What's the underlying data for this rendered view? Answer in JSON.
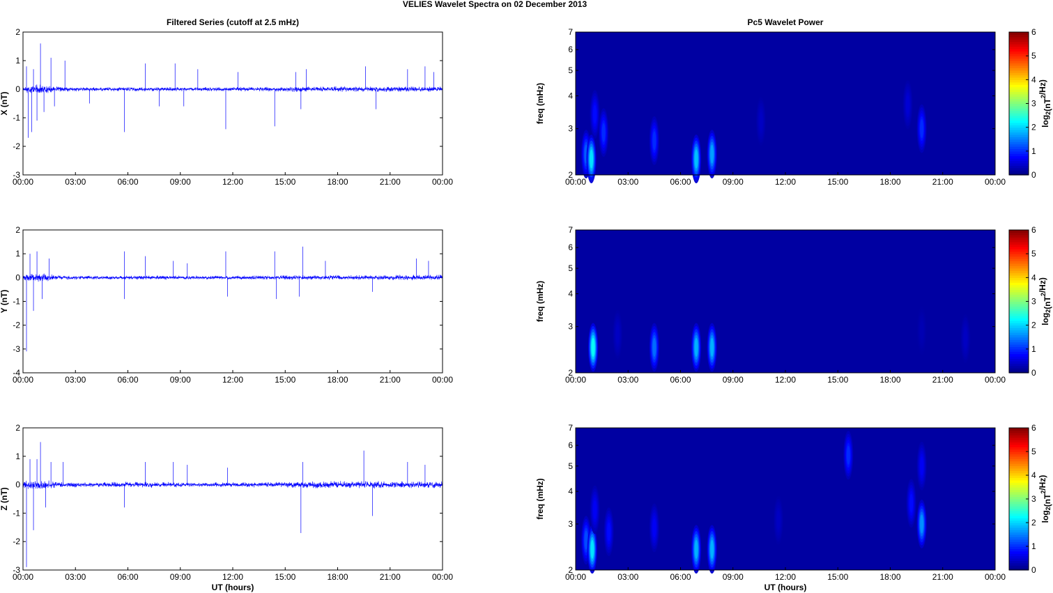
{
  "figure": {
    "title": "VELIES Wavelet Spectra on 02 December  2013",
    "left_column_title": "Filtered Series (cutoff at 2.5 mHz)",
    "right_column_title": "Pc5 Wavelet Power",
    "xlabel": "UT (hours)"
  },
  "chart_data": [
    {
      "type": "line",
      "panel": "X",
      "title": "Filtered Series (cutoff at 2.5 mHz)",
      "ylabel": "X (nT)",
      "xlabel": "",
      "x_range": [
        0,
        24
      ],
      "ylim": [
        -3,
        2
      ],
      "y_ticks": [
        "-3",
        "-2",
        "-1",
        "0",
        "1",
        "2"
      ],
      "x_ticks": [
        "00:00",
        "03:00",
        "06:00",
        "09:00",
        "12:00",
        "15:00",
        "18:00",
        "21:00",
        "00:00"
      ],
      "color": "#0000ff",
      "baseline_noise": [
        {
          "x": 0.0,
          "amp": 0.12
        },
        {
          "x": 1.0,
          "amp": 0.18
        },
        {
          "x": 2.0,
          "amp": 0.09
        },
        {
          "x": 4.0,
          "amp": 0.07
        },
        {
          "x": 7.0,
          "amp": 0.08
        },
        {
          "x": 10.0,
          "amp": 0.07
        },
        {
          "x": 14.0,
          "amp": 0.09
        },
        {
          "x": 16.0,
          "amp": 0.1
        },
        {
          "x": 19.5,
          "amp": 0.1
        },
        {
          "x": 21.0,
          "amp": 0.1
        },
        {
          "x": 24.0,
          "amp": 0.1
        }
      ],
      "spikes": [
        {
          "x": 0.2,
          "y": 0.8
        },
        {
          "x": 0.3,
          "y": -1.7
        },
        {
          "x": 0.5,
          "y": -1.5
        },
        {
          "x": 0.6,
          "y": 0.7
        },
        {
          "x": 0.8,
          "y": -1.1
        },
        {
          "x": 1.0,
          "y": 1.6
        },
        {
          "x": 1.2,
          "y": -0.8
        },
        {
          "x": 1.6,
          "y": 1.1
        },
        {
          "x": 1.8,
          "y": -0.6
        },
        {
          "x": 2.4,
          "y": 1.0
        },
        {
          "x": 3.8,
          "y": -0.5
        },
        {
          "x": 5.8,
          "y": -1.5
        },
        {
          "x": 7.0,
          "y": 0.9
        },
        {
          "x": 7.8,
          "y": -0.6
        },
        {
          "x": 8.7,
          "y": 0.9
        },
        {
          "x": 9.2,
          "y": -0.6
        },
        {
          "x": 10.0,
          "y": 0.7
        },
        {
          "x": 11.6,
          "y": -1.4
        },
        {
          "x": 12.3,
          "y": 0.6
        },
        {
          "x": 14.4,
          "y": -1.3
        },
        {
          "x": 15.6,
          "y": 0.6
        },
        {
          "x": 15.9,
          "y": -0.7
        },
        {
          "x": 16.2,
          "y": 0.7
        },
        {
          "x": 19.6,
          "y": 0.8
        },
        {
          "x": 20.2,
          "y": -0.7
        },
        {
          "x": 22.0,
          "y": 0.7
        },
        {
          "x": 23.0,
          "y": 0.8
        },
        {
          "x": 23.5,
          "y": 0.6
        }
      ]
    },
    {
      "type": "heatmap",
      "panel": "X",
      "title": "Pc5 Wavelet Power",
      "ylabel": "freq (mHz)",
      "colorbar_label": "log2(nT^2/Hz)",
      "x_range": [
        0,
        24
      ],
      "ylim": [
        2,
        7
      ],
      "y_scale": "log",
      "y_ticks": [
        "2",
        "3",
        "4",
        "5",
        "6",
        "7"
      ],
      "x_ticks": [
        "00:00",
        "03:00",
        "06:00",
        "09:00",
        "12:00",
        "15:00",
        "18:00",
        "21:00",
        "00:00"
      ],
      "clim": [
        0,
        6
      ],
      "colorbar_ticks": [
        "0",
        "1",
        "2",
        "3",
        "4",
        "5",
        "6"
      ],
      "background_value": 0.2,
      "blobs": [
        {
          "t": 0.6,
          "f": 2.4,
          "peak": 1.3
        },
        {
          "t": 0.9,
          "f": 2.3,
          "peak": 2.1
        },
        {
          "t": 1.1,
          "f": 3.4,
          "peak": 0.8
        },
        {
          "t": 1.6,
          "f": 2.9,
          "peak": 1.0
        },
        {
          "t": 4.5,
          "f": 2.7,
          "peak": 1.0
        },
        {
          "t": 6.9,
          "f": 2.3,
          "peak": 1.9
        },
        {
          "t": 7.8,
          "f": 2.4,
          "peak": 1.7
        },
        {
          "t": 10.6,
          "f": 3.2,
          "peak": 0.4
        },
        {
          "t": 19.0,
          "f": 3.7,
          "peak": 0.5
        },
        {
          "t": 19.8,
          "f": 3.0,
          "peak": 1.0
        }
      ]
    },
    {
      "type": "line",
      "panel": "Y",
      "title": "",
      "ylabel": "Y (nT)",
      "xlabel": "",
      "x_range": [
        0,
        24
      ],
      "ylim": [
        -4,
        2
      ],
      "y_ticks": [
        "-4",
        "-3",
        "-2",
        "-1",
        "0",
        "1",
        "2"
      ],
      "x_ticks": [
        "00:00",
        "03:00",
        "06:00",
        "09:00",
        "12:00",
        "15:00",
        "18:00",
        "21:00",
        "00:00"
      ],
      "color": "#0000ff",
      "baseline_noise": [
        {
          "x": 0.0,
          "amp": 0.15
        },
        {
          "x": 1.0,
          "amp": 0.2
        },
        {
          "x": 2.0,
          "amp": 0.1
        },
        {
          "x": 4.0,
          "amp": 0.08
        },
        {
          "x": 7.0,
          "amp": 0.09
        },
        {
          "x": 10.0,
          "amp": 0.08
        },
        {
          "x": 14.0,
          "amp": 0.09
        },
        {
          "x": 16.0,
          "amp": 0.1
        },
        {
          "x": 19.5,
          "amp": 0.1
        },
        {
          "x": 21.0,
          "amp": 0.12
        },
        {
          "x": 24.0,
          "amp": 0.12
        }
      ],
      "spikes": [
        {
          "x": 0.2,
          "y": -3.1
        },
        {
          "x": 0.4,
          "y": 1.0
        },
        {
          "x": 0.6,
          "y": -1.4
        },
        {
          "x": 0.8,
          "y": 1.1
        },
        {
          "x": 1.1,
          "y": -0.9
        },
        {
          "x": 1.5,
          "y": 0.8
        },
        {
          "x": 5.8,
          "y": 1.1
        },
        {
          "x": 5.8,
          "y": -0.9
        },
        {
          "x": 7.0,
          "y": 0.9
        },
        {
          "x": 8.6,
          "y": 0.7
        },
        {
          "x": 9.4,
          "y": 0.6
        },
        {
          "x": 11.6,
          "y": 1.1
        },
        {
          "x": 11.7,
          "y": -0.8
        },
        {
          "x": 14.4,
          "y": 1.1
        },
        {
          "x": 14.5,
          "y": -0.9
        },
        {
          "x": 16.0,
          "y": 1.3
        },
        {
          "x": 15.8,
          "y": -0.8
        },
        {
          "x": 17.3,
          "y": 0.7
        },
        {
          "x": 20.0,
          "y": -0.6
        },
        {
          "x": 22.5,
          "y": 0.8
        },
        {
          "x": 23.2,
          "y": 0.7
        }
      ]
    },
    {
      "type": "heatmap",
      "panel": "Y",
      "title": "",
      "ylabel": "freq (mHz)",
      "colorbar_label": "log2(nT^2/Hz)",
      "x_range": [
        0,
        24
      ],
      "ylim": [
        2,
        7
      ],
      "y_scale": "log",
      "y_ticks": [
        "2",
        "3",
        "4",
        "5",
        "6",
        "7"
      ],
      "x_ticks": [
        "00:00",
        "03:00",
        "06:00",
        "09:00",
        "12:00",
        "15:00",
        "18:00",
        "21:00",
        "00:00"
      ],
      "clim": [
        0,
        6
      ],
      "colorbar_ticks": [
        "0",
        "1",
        "2",
        "3",
        "4",
        "5",
        "6"
      ],
      "background_value": 0.2,
      "blobs": [
        {
          "t": 1.0,
          "f": 2.5,
          "peak": 2.3
        },
        {
          "t": 2.4,
          "f": 2.8,
          "peak": 0.4
        },
        {
          "t": 4.5,
          "f": 2.5,
          "peak": 1.4
        },
        {
          "t": 6.9,
          "f": 2.5,
          "peak": 1.8
        },
        {
          "t": 7.8,
          "f": 2.5,
          "peak": 1.8
        },
        {
          "t": 19.8,
          "f": 2.9,
          "peak": 0.3
        },
        {
          "t": 22.3,
          "f": 2.7,
          "peak": 0.4
        }
      ]
    },
    {
      "type": "line",
      "panel": "Z",
      "title": "",
      "ylabel": "Z (nT)",
      "xlabel": "UT (hours)",
      "x_range": [
        0,
        24
      ],
      "ylim": [
        -3,
        2
      ],
      "y_ticks": [
        "-3",
        "-2",
        "-1",
        "0",
        "1",
        "2"
      ],
      "x_ticks": [
        "00:00",
        "03:00",
        "06:00",
        "09:00",
        "12:00",
        "15:00",
        "18:00",
        "21:00",
        "00:00"
      ],
      "color": "#0000ff",
      "baseline_noise": [
        {
          "x": 0.0,
          "amp": 0.15
        },
        {
          "x": 1.0,
          "amp": 0.2
        },
        {
          "x": 2.0,
          "amp": 0.1
        },
        {
          "x": 4.0,
          "amp": 0.08
        },
        {
          "x": 7.0,
          "amp": 0.12
        },
        {
          "x": 10.0,
          "amp": 0.08
        },
        {
          "x": 14.0,
          "amp": 0.1
        },
        {
          "x": 16.0,
          "amp": 0.12
        },
        {
          "x": 19.5,
          "amp": 0.15
        },
        {
          "x": 21.0,
          "amp": 0.12
        },
        {
          "x": 24.0,
          "amp": 0.12
        }
      ],
      "spikes": [
        {
          "x": 0.2,
          "y": -2.9
        },
        {
          "x": 0.4,
          "y": 0.9
        },
        {
          "x": 0.6,
          "y": -1.6
        },
        {
          "x": 0.8,
          "y": 0.9
        },
        {
          "x": 1.0,
          "y": 1.5
        },
        {
          "x": 1.3,
          "y": -0.8
        },
        {
          "x": 1.6,
          "y": 0.8
        },
        {
          "x": 2.3,
          "y": 0.8
        },
        {
          "x": 5.8,
          "y": -0.8
        },
        {
          "x": 7.0,
          "y": 0.8
        },
        {
          "x": 8.6,
          "y": 0.8
        },
        {
          "x": 9.4,
          "y": 0.7
        },
        {
          "x": 11.7,
          "y": 0.6
        },
        {
          "x": 15.9,
          "y": -1.7
        },
        {
          "x": 16.0,
          "y": 0.8
        },
        {
          "x": 19.5,
          "y": 1.2
        },
        {
          "x": 20.0,
          "y": -1.1
        },
        {
          "x": 22.0,
          "y": 0.8
        },
        {
          "x": 23.0,
          "y": 0.7
        }
      ]
    },
    {
      "type": "heatmap",
      "panel": "Z",
      "title": "",
      "ylabel": "freq (mHz)",
      "xlabel": "UT (hours)",
      "colorbar_label": "log2(nT^2/Hz)",
      "x_range": [
        0,
        24
      ],
      "ylim": [
        2,
        7
      ],
      "y_scale": "log",
      "y_ticks": [
        "2",
        "3",
        "4",
        "5",
        "6",
        "7"
      ],
      "x_ticks": [
        "00:00",
        "03:00",
        "06:00",
        "09:00",
        "12:00",
        "15:00",
        "18:00",
        "21:00",
        "00:00"
      ],
      "clim": [
        0,
        6
      ],
      "colorbar_ticks": [
        "0",
        "1",
        "2",
        "3",
        "4",
        "5",
        "6"
      ],
      "background_value": 0.2,
      "blobs": [
        {
          "t": 0.6,
          "f": 2.6,
          "peak": 1.2
        },
        {
          "t": 0.95,
          "f": 2.4,
          "peak": 2.1
        },
        {
          "t": 1.1,
          "f": 3.4,
          "peak": 0.7
        },
        {
          "t": 1.9,
          "f": 2.8,
          "peak": 0.8
        },
        {
          "t": 4.5,
          "f": 2.9,
          "peak": 0.7
        },
        {
          "t": 6.9,
          "f": 2.4,
          "peak": 1.8
        },
        {
          "t": 7.8,
          "f": 2.4,
          "peak": 1.8
        },
        {
          "t": 11.6,
          "f": 3.1,
          "peak": 0.4
        },
        {
          "t": 15.6,
          "f": 5.5,
          "peak": 1.0
        },
        {
          "t": 19.2,
          "f": 3.6,
          "peak": 0.8
        },
        {
          "t": 19.8,
          "f": 3.0,
          "peak": 1.6
        },
        {
          "t": 19.8,
          "f": 5.0,
          "peak": 0.7
        }
      ]
    }
  ]
}
